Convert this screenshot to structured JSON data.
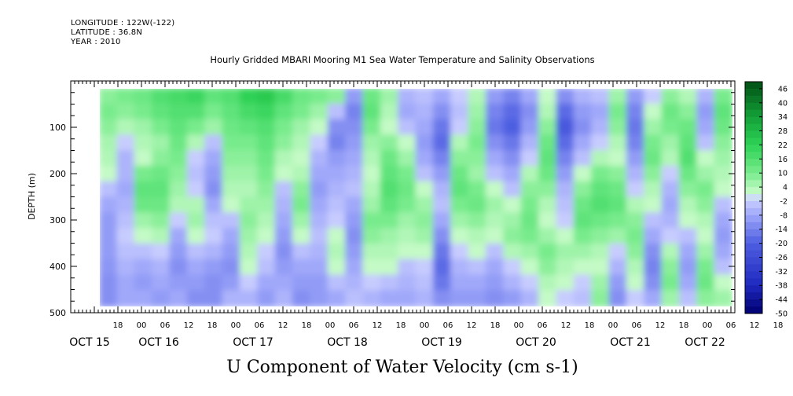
{
  "header": {
    "longitude": "LONGITUDE : 122W(-122)",
    "latitude": "LATITUDE : 36.8N",
    "year": "YEAR : 2010",
    "title": "Hourly Gridded MBARI Mooring M1 Sea Water Temperature and Salinity Observations"
  },
  "chart_data": {
    "type": "heatmap",
    "title": "Hourly Gridded MBARI Mooring M1 Sea Water Temperature and Salinity Observations",
    "xlabel": "U Component of Water Velocity (cm s-1)",
    "ylabel": "DEPTH (m)",
    "y_ticks": [
      "100",
      "200",
      "300",
      "400",
      "500"
    ],
    "y_range": [
      500,
      0
    ],
    "x_hour_ticks": [
      "18",
      "00",
      "06",
      "12",
      "18",
      "00",
      "06",
      "12",
      "18",
      "00",
      "06",
      "12",
      "18",
      "00",
      "06",
      "12",
      "18",
      "00",
      "06",
      "12",
      "18",
      "00",
      "06",
      "12",
      "18",
      "00",
      "06",
      "12",
      "18",
      "00",
      "06",
      "12"
    ],
    "x_day_labels": [
      "OCT 15",
      "OCT 16",
      "OCT 17",
      "OCT 18",
      "OCT 19",
      "OCT 20",
      "OCT 21",
      "OCT 22"
    ],
    "colorbar_labels": [
      "46",
      "40",
      "34",
      "28",
      "22",
      "16",
      "10",
      "4",
      "-2",
      "-8",
      "-14",
      "-20",
      "-26",
      "-32",
      "-38",
      "-44",
      "-50"
    ],
    "colorbar_range": [
      -50,
      49
    ],
    "colors": {
      "negative_min": "#000070",
      "negative_mid": "#4f5fe0",
      "negative_light": "#c4c9ff",
      "positive_light": "#c8fcc8",
      "positive_mid": "#2edc57",
      "positive_max": "#005a14"
    },
    "columns": [
      {
        "pattern": [
          8,
          10,
          8,
          5,
          4,
          2,
          -4,
          -8,
          -10,
          -10,
          -10,
          -11,
          -12,
          -12
        ]
      },
      {
        "pattern": [
          10,
          8,
          4,
          -2,
          -6,
          -6,
          -8,
          -6,
          -4,
          -2,
          -4,
          -6,
          -8,
          -8
        ]
      },
      {
        "pattern": [
          12,
          10,
          6,
          4,
          2,
          10,
          14,
          12,
          6,
          2,
          -4,
          -8,
          -10,
          -8
        ]
      },
      {
        "pattern": [
          16,
          14,
          10,
          6,
          8,
          12,
          14,
          12,
          8,
          4,
          -2,
          -6,
          -8,
          -10
        ]
      },
      {
        "pattern": [
          18,
          16,
          14,
          12,
          10,
          8,
          6,
          4,
          -2,
          -8,
          -10,
          -12,
          -10,
          -8
        ]
      },
      {
        "pattern": [
          20,
          16,
          10,
          4,
          -2,
          -4,
          -2,
          4,
          6,
          2,
          -4,
          -8,
          -10,
          -12
        ]
      },
      {
        "pattern": [
          14,
          10,
          6,
          -4,
          -8,
          -10,
          -12,
          -8,
          -4,
          -2,
          -6,
          -10,
          -12,
          -12
        ]
      },
      {
        "pattern": [
          16,
          14,
          12,
          10,
          8,
          6,
          4,
          2,
          -4,
          -8,
          -10,
          -12,
          -10,
          -6
        ]
      },
      {
        "pattern": [
          22,
          18,
          14,
          10,
          8,
          6,
          4,
          6,
          8,
          6,
          4,
          2,
          -2,
          -6
        ]
      },
      {
        "pattern": [
          24,
          20,
          16,
          14,
          12,
          10,
          8,
          6,
          4,
          2,
          -2,
          -4,
          -8,
          -10
        ]
      },
      {
        "pattern": [
          18,
          14,
          10,
          8,
          4,
          2,
          -4,
          -6,
          -8,
          -10,
          -12,
          -10,
          -8,
          -6
        ]
      },
      {
        "pattern": [
          12,
          10,
          6,
          4,
          2,
          4,
          8,
          10,
          6,
          2,
          -4,
          -8,
          -10,
          -12
        ]
      },
      {
        "pattern": [
          10,
          6,
          2,
          -2,
          -6,
          -8,
          -10,
          -8,
          -6,
          -4,
          -6,
          -8,
          -10,
          -10
        ]
      },
      {
        "pattern": [
          8,
          -4,
          -12,
          -14,
          -10,
          -8,
          -6,
          -4,
          -2,
          2,
          4,
          2,
          -4,
          -8
        ]
      },
      {
        "pattern": [
          -10,
          -14,
          -12,
          -10,
          -8,
          -6,
          -4,
          -8,
          -10,
          -12,
          -10,
          -8,
          -6,
          -4
        ]
      },
      {
        "pattern": [
          12,
          14,
          10,
          6,
          4,
          2,
          4,
          6,
          10,
          8,
          4,
          2,
          -2,
          -6
        ]
      },
      {
        "pattern": [
          6,
          4,
          2,
          8,
          12,
          14,
          16,
          14,
          10,
          6,
          4,
          2,
          -4,
          -8
        ]
      },
      {
        "pattern": [
          -6,
          -8,
          -4,
          2,
          6,
          10,
          12,
          10,
          6,
          4,
          2,
          -4,
          -6,
          -8
        ]
      },
      {
        "pattern": [
          -4,
          -6,
          -8,
          -10,
          -8,
          -4,
          2,
          6,
          8,
          6,
          2,
          -2,
          -4,
          -6
        ]
      },
      {
        "pattern": [
          -8,
          -12,
          -16,
          -18,
          -14,
          -10,
          -6,
          -4,
          -8,
          -12,
          -16,
          -18,
          -16,
          -12
        ]
      },
      {
        "pattern": [
          -2,
          -4,
          -2,
          4,
          8,
          12,
          14,
          10,
          6,
          2,
          -2,
          -6,
          -8,
          -10
        ]
      },
      {
        "pattern": [
          4,
          6,
          8,
          10,
          8,
          6,
          10,
          12,
          8,
          4,
          2,
          -4,
          -8,
          -10
        ]
      },
      {
        "pattern": [
          -10,
          -14,
          -16,
          -12,
          -8,
          -4,
          2,
          6,
          4,
          2,
          -4,
          -8,
          -10,
          -12
        ]
      },
      {
        "pattern": [
          -14,
          -18,
          -20,
          -16,
          -12,
          -8,
          -4,
          2,
          6,
          8,
          4,
          -2,
          -6,
          -10
        ]
      },
      {
        "pattern": [
          -8,
          -12,
          -10,
          -6,
          -2,
          4,
          8,
          10,
          12,
          10,
          6,
          2,
          -2,
          -6
        ]
      },
      {
        "pattern": [
          2,
          4,
          8,
          12,
          14,
          12,
          8,
          4,
          2,
          6,
          10,
          8,
          4,
          2
        ]
      },
      {
        "pattern": [
          -12,
          -18,
          -22,
          -18,
          -14,
          -10,
          -6,
          -4,
          -2,
          2,
          6,
          4,
          2,
          -2
        ]
      },
      {
        "pattern": [
          -6,
          -10,
          -12,
          -8,
          -4,
          2,
          8,
          12,
          14,
          10,
          6,
          2,
          -2,
          -4
        ]
      },
      {
        "pattern": [
          -4,
          -8,
          -6,
          -2,
          4,
          10,
          14,
          16,
          12,
          8,
          4,
          2,
          6,
          8
        ]
      },
      {
        "pattern": [
          6,
          10,
          8,
          4,
          2,
          8,
          12,
          14,
          10,
          6,
          -2,
          -6,
          -10,
          -12
        ]
      },
      {
        "pattern": [
          -10,
          -14,
          -16,
          -14,
          -10,
          -6,
          -2,
          4,
          8,
          10,
          8,
          4,
          2,
          -2
        ]
      },
      {
        "pattern": [
          -2,
          2,
          6,
          10,
          12,
          8,
          4,
          2,
          -4,
          -8,
          -12,
          -14,
          -12,
          -8
        ]
      },
      {
        "pattern": [
          8,
          12,
          10,
          6,
          4,
          -2,
          -6,
          -8,
          -6,
          -2,
          4,
          8,
          10,
          6
        ]
      },
      {
        "pattern": [
          4,
          8,
          12,
          14,
          16,
          12,
          8,
          4,
          2,
          -4,
          -8,
          -10,
          -8,
          -4
        ]
      },
      {
        "pattern": [
          -6,
          -10,
          -8,
          -4,
          2,
          6,
          10,
          8,
          4,
          2,
          6,
          10,
          12,
          8
        ]
      },
      {
        "pattern": [
          10,
          14,
          12,
          8,
          6,
          4,
          2,
          -4,
          -8,
          -10,
          -8,
          -4,
          2,
          6
        ]
      }
    ]
  },
  "axes": {
    "ylabel": "DEPTH (m)",
    "xlabel": "U Component of Water Velocity (cm s-1)"
  }
}
